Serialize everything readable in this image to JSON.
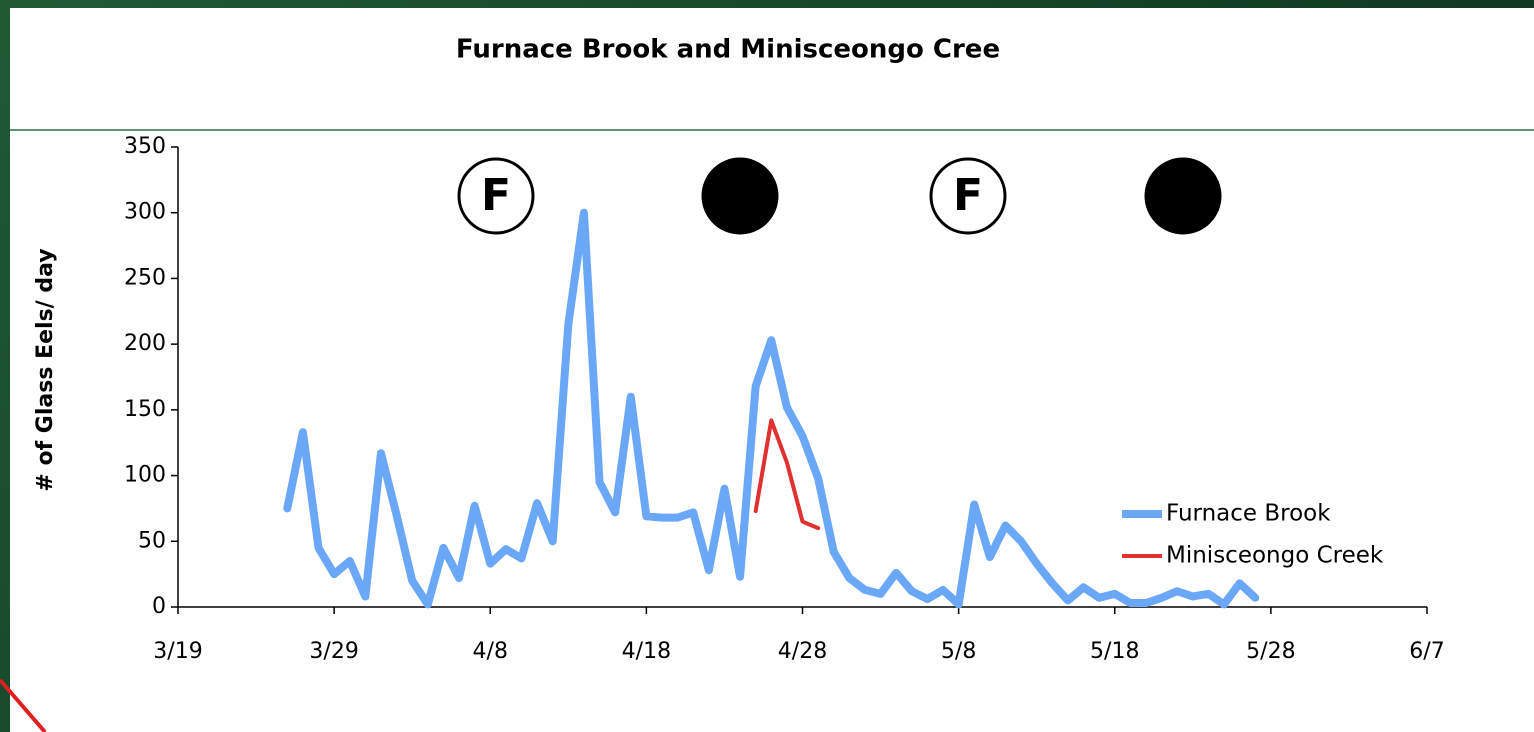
{
  "chart_data": {
    "type": "line",
    "title": "Furnace Brook and Minisceongo Cree",
    "y_label": "# of Glass Eels/ day",
    "annotations": [
      "F",
      "N",
      "F",
      "N"
    ],
    "xlim": [
      "3/19",
      "6/7"
    ],
    "xticks": [
      "3/19",
      "3/29",
      "4/8",
      "4/18",
      "4/28",
      "5/8",
      "5/18",
      "5/28",
      "6/7"
    ],
    "ylim": [
      0,
      350
    ],
    "yticks": [
      0,
      50,
      100,
      150,
      200,
      250,
      300,
      350
    ],
    "legend": "right",
    "series": [
      {
        "name": "Furnace Brook",
        "color": "#6aa8f7",
        "x": [
          "3/26",
          "3/27",
          "3/28",
          "3/29",
          "3/30",
          "3/31",
          "4/1",
          "4/2",
          "4/3",
          "4/4",
          "4/5",
          "4/6",
          "4/7",
          "4/8",
          "4/9",
          "4/10",
          "4/11",
          "4/12",
          "4/13",
          "4/14",
          "4/15",
          "4/16",
          "4/17",
          "4/18",
          "4/19",
          "4/20",
          "4/21",
          "4/22",
          "4/23",
          "4/24",
          "4/25",
          "4/26",
          "4/27",
          "4/28",
          "4/29",
          "4/30",
          "5/1",
          "5/2",
          "5/3",
          "5/4",
          "5/5",
          "5/6",
          "5/7",
          "5/8",
          "5/9",
          "5/10",
          "5/11",
          "5/12",
          "5/13",
          "5/14",
          "5/15",
          "5/16",
          "5/17",
          "5/18",
          "5/19",
          "5/20",
          "5/21",
          "5/22",
          "5/23",
          "5/24",
          "5/25",
          "5/26",
          "5/27"
        ],
        "values": [
          75,
          133,
          45,
          25,
          35,
          8,
          117,
          70,
          20,
          2,
          45,
          22,
          77,
          33,
          44,
          37,
          79,
          50,
          215,
          300,
          95,
          72,
          160,
          69,
          68,
          68,
          72,
          28,
          90,
          23,
          168,
          203,
          152,
          130,
          98,
          42,
          22,
          13,
          10,
          26,
          12,
          6,
          13,
          2,
          78,
          38,
          62,
          50,
          33,
          18,
          5,
          15,
          7,
          10,
          3,
          3,
          7,
          12,
          8,
          10,
          2,
          18,
          7
        ]
      },
      {
        "name": "Minisceongo Creek",
        "color": "#e03030",
        "x": [
          "4/25",
          "4/26",
          "4/27",
          "4/28",
          "4/29"
        ],
        "values": [
          73,
          142,
          110,
          65,
          60
        ]
      }
    ]
  }
}
